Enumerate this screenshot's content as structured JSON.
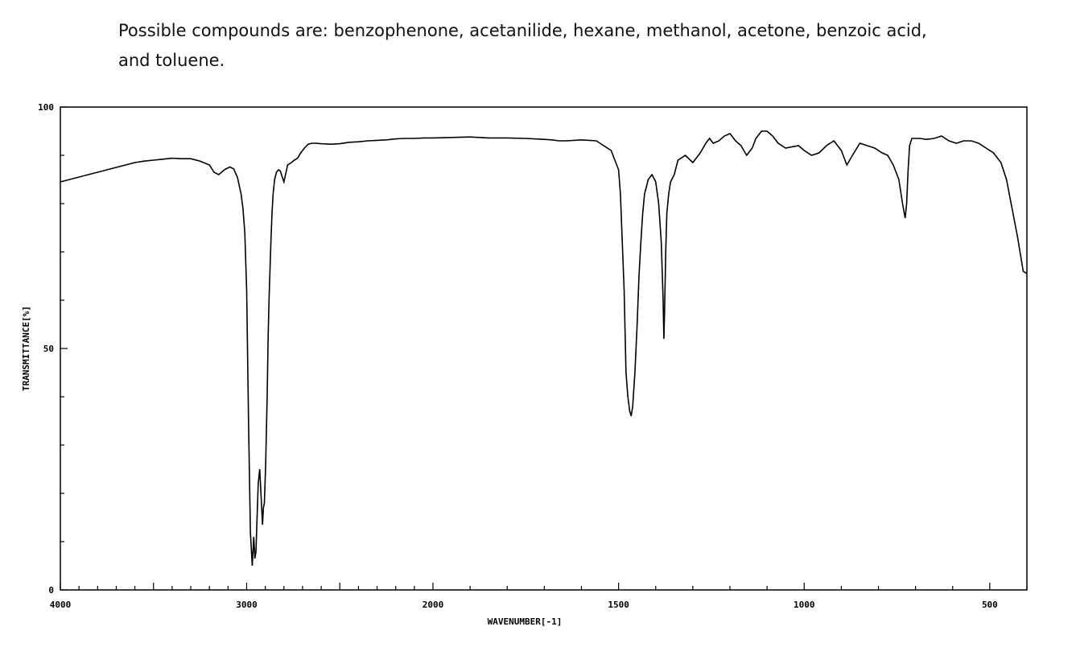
{
  "question": {
    "line1": "Possible compounds are: benzophenone, acetanilide, hexane, methanol, acetone, benzoic acid,",
    "line2": "and toluene."
  },
  "chart_data": {
    "type": "line",
    "xlabel": "WAVENUMBER[-1]",
    "ylabel": "TRANSMITTANCE[%]",
    "xlim": [
      4000,
      400
    ],
    "ylim": [
      0,
      100
    ],
    "x_tick_labels": [
      "4000",
      "3000",
      "2000",
      "1500",
      "1000",
      "500"
    ],
    "y_tick_labels": [
      "0",
      "50",
      "100"
    ],
    "grid": false,
    "line_color": "#000000",
    "series": [
      {
        "x": [
          4000,
          3950,
          3900,
          3850,
          3800,
          3750,
          3700,
          3650,
          3600,
          3550,
          3500,
          3450,
          3400,
          3350,
          3300,
          3250,
          3200,
          3175,
          3150,
          3120,
          3090,
          3070,
          3050,
          3030,
          3020,
          3010,
          3000,
          2990,
          2980,
          2970,
          2962,
          2956,
          2950,
          2945,
          2938,
          2930,
          2922,
          2915,
          2910,
          2905,
          2898,
          2890,
          2885,
          2880,
          2875,
          2870,
          2864,
          2858,
          2850,
          2840,
          2830,
          2820,
          2800,
          2780,
          2760,
          2745,
          2735,
          2725,
          2710,
          2690,
          2670,
          2650,
          2630,
          2600,
          2550,
          2500,
          2450,
          2400,
          2350,
          2300,
          2250,
          2200,
          2150,
          2100,
          2050,
          2000,
          1950,
          1900,
          1850,
          1800,
          1750,
          1700,
          1680,
          1660,
          1640,
          1600,
          1560,
          1540,
          1520,
          1510,
          1500,
          1495,
          1490,
          1485,
          1480,
          1475,
          1470,
          1466,
          1462,
          1456,
          1450,
          1445,
          1440,
          1435,
          1430,
          1420,
          1410,
          1400,
          1392,
          1385,
          1380,
          1378,
          1376,
          1373,
          1370,
          1365,
          1360,
          1350,
          1340,
          1320,
          1300,
          1280,
          1265,
          1255,
          1245,
          1230,
          1215,
          1200,
          1185,
          1170,
          1155,
          1140,
          1130,
          1115,
          1100,
          1085,
          1070,
          1050,
          1030,
          1015,
          1000,
          980,
          960,
          940,
          920,
          900,
          885,
          870,
          850,
          830,
          810,
          790,
          775,
          760,
          745,
          735,
          728,
          724,
          720,
          716,
          710,
          700,
          690,
          670,
          650,
          630,
          610,
          590,
          570,
          550,
          530,
          510,
          490,
          470,
          455,
          440,
          425,
          410,
          400
        ],
        "y": [
          84.5,
          85.0,
          85.5,
          86.0,
          86.5,
          87.0,
          87.5,
          88.0,
          88.5,
          88.8,
          89.0,
          89.2,
          89.4,
          89.3,
          89.3,
          88.8,
          88.0,
          86.5,
          86.0,
          87.0,
          87.6,
          87.2,
          85.5,
          82.0,
          79.0,
          74.0,
          62.0,
          35.0,
          12.0,
          5.0,
          11.0,
          6.5,
          8.0,
          14.0,
          22.0,
          25.0,
          19.0,
          13.5,
          17.0,
          18.0,
          26.0,
          40.0,
          52.0,
          60.0,
          66.0,
          72.0,
          78.0,
          82.0,
          85.0,
          86.5,
          87.0,
          86.8,
          84.5,
          88.0,
          88.5,
          89.0,
          89.2,
          89.5,
          90.5,
          91.5,
          92.3,
          92.5,
          92.5,
          92.4,
          92.3,
          92.4,
          92.7,
          92.8,
          93.0,
          93.1,
          93.2,
          93.4,
          93.5,
          93.5,
          93.6,
          93.6,
          93.7,
          93.8,
          93.6,
          93.6,
          93.5,
          93.3,
          93.2,
          93.0,
          93.0,
          93.2,
          93.0,
          92.0,
          91.0,
          89.0,
          87.0,
          82.0,
          72.0,
          62.0,
          45.0,
          40.0,
          37.0,
          36.0,
          38.0,
          45.0,
          55.0,
          65.0,
          72.0,
          78.0,
          82.0,
          85.0,
          86.0,
          84.5,
          80.0,
          72.0,
          60.0,
          52.0,
          58.0,
          70.0,
          78.0,
          82.0,
          84.5,
          86.0,
          89.0,
          90.0,
          88.5,
          90.5,
          92.5,
          93.5,
          92.5,
          93.0,
          94.0,
          94.5,
          93.0,
          92.0,
          90.0,
          91.5,
          93.5,
          95.0,
          95.0,
          94.0,
          92.5,
          91.5,
          91.8,
          92.0,
          91.0,
          90.0,
          90.5,
          92.0,
          93.0,
          91.0,
          88.0,
          90.0,
          92.5,
          92.0,
          91.5,
          90.5,
          90.0,
          88.0,
          85.0,
          80.0,
          77.0,
          80.0,
          87.0,
          92.0,
          93.5,
          93.5,
          93.5,
          93.3,
          93.5,
          94.0,
          93.0,
          92.5,
          93.0,
          93.0,
          92.5,
          91.5,
          90.5,
          88.5,
          85.0,
          79.0,
          73.0,
          66.0,
          65.5
        ]
      }
    ]
  }
}
